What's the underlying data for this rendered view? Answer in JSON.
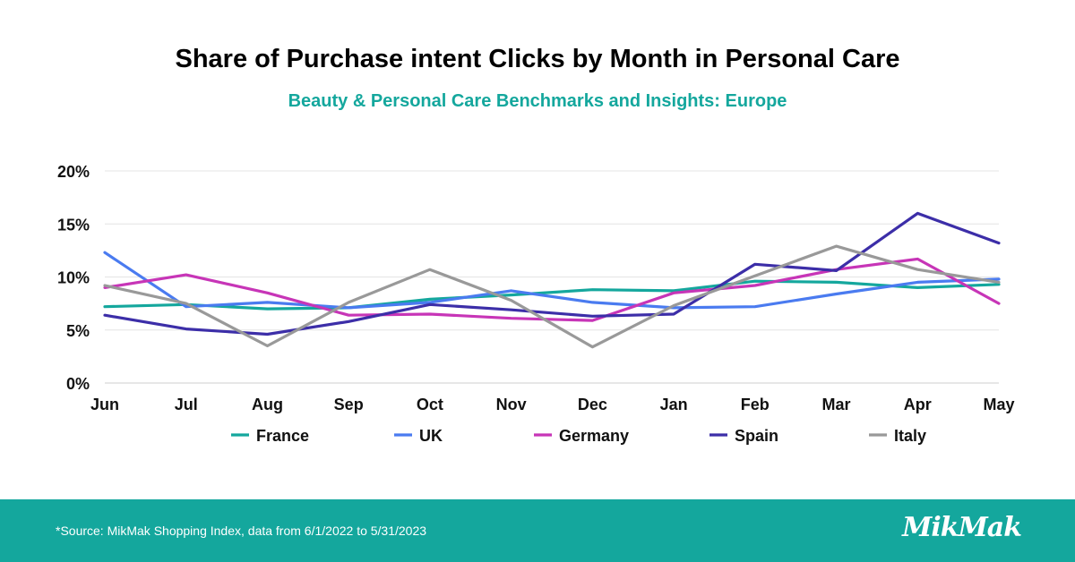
{
  "header": {
    "title": "Share of Purchase intent Clicks by Month in Personal Care",
    "subtitle": "Beauty & Personal Care Benchmarks and Insights: Europe",
    "subtitle_color": "#14A79D"
  },
  "footer": {
    "source": "*Source: MikMak Shopping Index, data from 6/1/2022 to 5/31/2023",
    "logo_text": "MikMak",
    "background": "#14A79D"
  },
  "chart_data": {
    "type": "line",
    "title": "Share of Purchase intent Clicks by Month in Personal Care",
    "subtitle": "Beauty & Personal Care Benchmarks and Insights: Europe",
    "xlabel": "",
    "ylabel": "",
    "categories": [
      "Jun",
      "Jul",
      "Aug",
      "Sep",
      "Oct",
      "Nov",
      "Dec",
      "Jan",
      "Feb",
      "Mar",
      "Apr",
      "May"
    ],
    "ylim": [
      0,
      20
    ],
    "yticks": [
      0,
      5,
      10,
      15,
      20
    ],
    "ytick_labels": [
      "0%",
      "5%",
      "10%",
      "15%",
      "20%"
    ],
    "grid": true,
    "legend_position": "bottom",
    "series": [
      {
        "name": "France",
        "color": "#14A79D",
        "values": [
          7.2,
          7.4,
          7.0,
          7.1,
          7.9,
          8.3,
          8.8,
          8.7,
          9.6,
          9.5,
          9.0,
          9.3
        ]
      },
      {
        "name": "UK",
        "color": "#4A7BF0",
        "values": [
          12.3,
          7.2,
          7.6,
          7.1,
          7.6,
          8.7,
          7.6,
          7.1,
          7.2,
          8.4,
          9.5,
          9.8
        ]
      },
      {
        "name": "Germany",
        "color": "#C735B7",
        "values": [
          9.0,
          10.2,
          8.5,
          6.4,
          6.5,
          6.1,
          5.9,
          8.5,
          9.2,
          10.7,
          11.7,
          7.5
        ]
      },
      {
        "name": "Spain",
        "color": "#3C2EA8",
        "values": [
          6.4,
          5.1,
          4.6,
          5.8,
          7.4,
          6.9,
          6.3,
          6.5,
          11.2,
          10.6,
          16.0,
          13.2
        ]
      },
      {
        "name": "Italy",
        "color": "#999999",
        "values": [
          9.2,
          7.5,
          3.5,
          7.6,
          10.7,
          7.8,
          3.4,
          7.3,
          10.1,
          12.9,
          10.7,
          9.5
        ]
      }
    ]
  }
}
